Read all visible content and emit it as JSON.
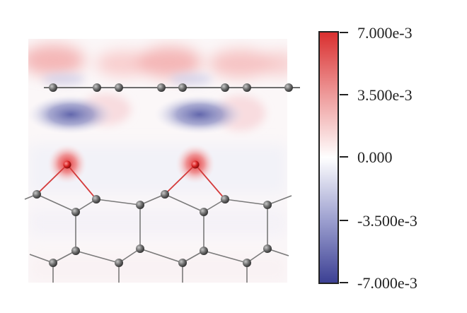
{
  "figure": {
    "colors": {
      "positive": "#d92e2e",
      "negative": "#3b3f93",
      "atom": "#666666",
      "oxygen_atom": "#d62020",
      "bond": "#7a7a7a",
      "bond_to_oxygen": "#d43a3a"
    },
    "colorbar": {
      "max": 0.007,
      "min": -0.007,
      "ticks": [
        "7.000e-3",
        "3.500e-3",
        "0.000",
        "-3.500e-3",
        "-7.000e-3"
      ],
      "scale": "diverging red-white-blue"
    }
  }
}
